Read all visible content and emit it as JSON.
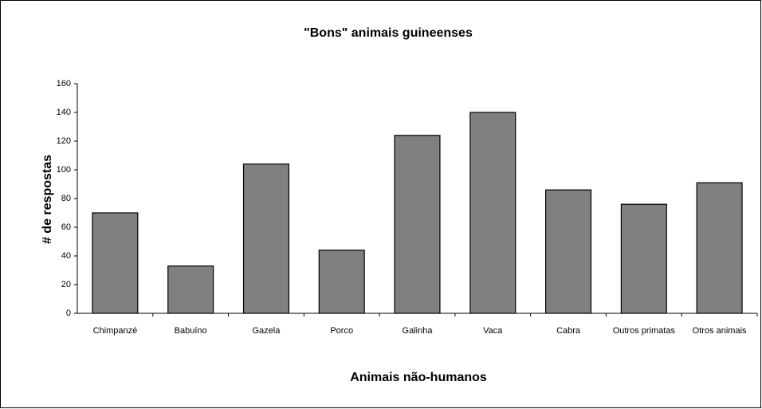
{
  "chart_data": {
    "type": "bar",
    "title": "\"Bons\" animais guineenses",
    "x_label": "Animais não-humanos",
    "y_label": "# de respostas",
    "categories": [
      "Chimpanzé",
      "Babuíno",
      "Gazela",
      "Porco",
      "Galinha",
      "Vaca",
      "Cabra",
      "Outros primatas",
      "Otros animais"
    ],
    "values": [
      70,
      33,
      104,
      44,
      124,
      140,
      86,
      76,
      91
    ],
    "color": "#808080",
    "ylim": [
      0,
      160
    ],
    "yticks": [
      0,
      20,
      40,
      60,
      80,
      100,
      120,
      140,
      160
    ],
    "grid": false
  }
}
